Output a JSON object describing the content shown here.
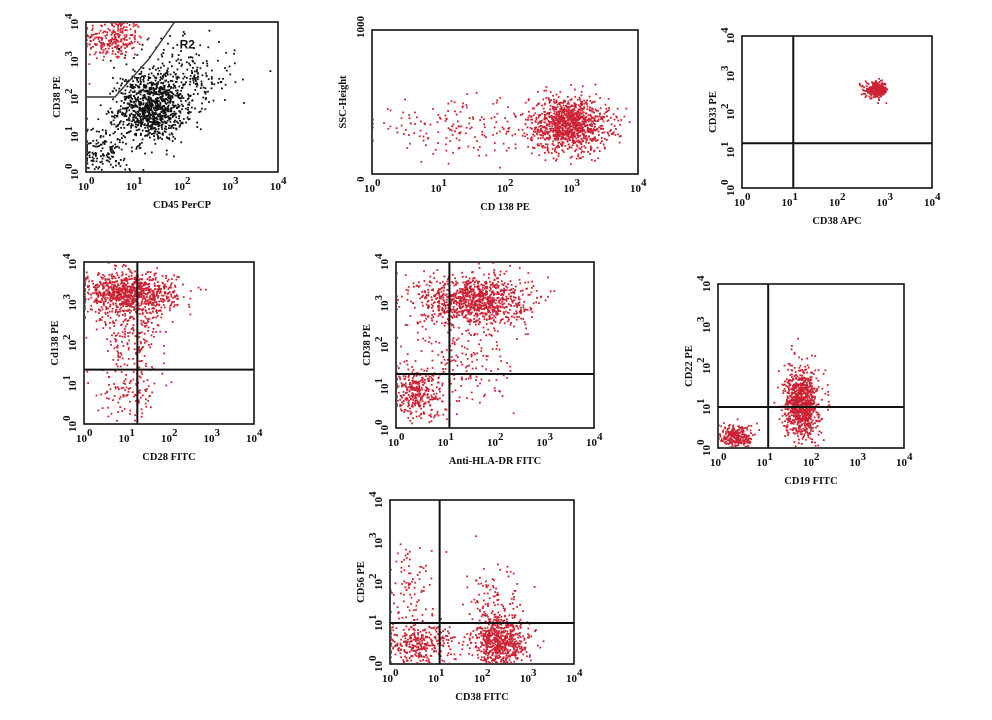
{
  "colors": {
    "event": "#cc2233",
    "event_alt": "#111111",
    "frame": "#111111"
  },
  "chart_data": [
    {
      "id": "p1",
      "type": "scatter",
      "xscale": "log",
      "yscale": "log",
      "xlim": [
        1,
        10000
      ],
      "ylim": [
        1,
        10000
      ],
      "xlabel": "CD45 PerCP",
      "ylabel": "CD38 PE",
      "xticks": [
        "10",
        "10",
        "10",
        "10",
        "10"
      ],
      "xexps": [
        "0",
        "1",
        "2",
        "3",
        "4"
      ],
      "yticks": [
        "10",
        "10",
        "10",
        "10",
        "10"
      ],
      "yexps": [
        "0",
        "1",
        "2",
        "3",
        "4"
      ],
      "gate_label": "R2",
      "gate_polygon": [
        [
          1,
          100
        ],
        [
          4,
          100
        ],
        [
          20,
          1000
        ],
        [
          70,
          10000
        ]
      ],
      "clusters": [
        {
          "color": "event",
          "n": 240,
          "cx": 0.55,
          "cy": 3.55,
          "sx": 0.32,
          "sy": 0.28
        },
        {
          "color": "event_alt",
          "n": 900,
          "cx": 1.35,
          "cy": 1.7,
          "sx": 0.34,
          "sy": 0.42
        },
        {
          "color": "event_alt",
          "n": 300,
          "cx": 1.9,
          "cy": 2.5,
          "sx": 0.6,
          "sy": 0.5
        },
        {
          "color": "event_alt",
          "n": 180,
          "cx": 0.35,
          "cy": 0.55,
          "sx": 0.3,
          "sy": 0.4
        }
      ]
    },
    {
      "id": "p2",
      "type": "scatter",
      "xscale": "log",
      "yscale": "linear",
      "xlim": [
        1,
        10000
      ],
      "ylim": [
        0,
        1000
      ],
      "xlabel": "CD 138 PE",
      "ylabel": "SSC-Height",
      "xticks": [
        "10",
        "10",
        "10",
        "10",
        "10"
      ],
      "xexps": [
        "0",
        "1",
        "2",
        "3",
        "4"
      ],
      "yticks": [
        "0",
        "1000"
      ],
      "yexps": [
        "",
        ""
      ],
      "clusters": [
        {
          "color": "event",
          "n": 1100,
          "cx": 2.95,
          "cy": 350,
          "sx": 0.3,
          "sy": 95
        },
        {
          "color": "event",
          "n": 160,
          "cx": 1.3,
          "cy": 330,
          "sx": 0.7,
          "sy": 90
        }
      ]
    },
    {
      "id": "p3",
      "type": "scatter",
      "xscale": "log",
      "yscale": "log",
      "xlim": [
        1,
        10000
      ],
      "ylim": [
        1,
        10000
      ],
      "xlabel": "CD38 APC",
      "ylabel": "CD33 PE",
      "xticks": [
        "10",
        "10",
        "10",
        "10",
        "10"
      ],
      "xexps": [
        "0",
        "1",
        "2",
        "3",
        "4"
      ],
      "yticks": [
        "10",
        "10",
        "10",
        "10",
        "10"
      ],
      "yexps": [
        "0",
        "1",
        "2",
        "3",
        "4"
      ],
      "quadrant": [
        12,
        15
      ],
      "clusters": [
        {
          "color": "event",
          "n": 300,
          "cx": 2.82,
          "cy": 2.6,
          "sx": 0.12,
          "sy": 0.1
        }
      ]
    },
    {
      "id": "p4",
      "type": "scatter",
      "xscale": "log",
      "yscale": "log",
      "xlim": [
        1,
        10000
      ],
      "ylim": [
        1,
        10000
      ],
      "xlabel": "CD28 FITC",
      "ylabel": "Cd138 PE",
      "xticks": [
        "10",
        "10",
        "10",
        "10",
        "10"
      ],
      "xexps": [
        "0",
        "1",
        "2",
        "3",
        "4"
      ],
      "yticks": [
        "10",
        "10",
        "10",
        "10",
        "10"
      ],
      "yexps": [
        "0",
        "1",
        "2",
        "3",
        "4"
      ],
      "quadrant": [
        18,
        22
      ],
      "clusters": [
        {
          "color": "event",
          "n": 900,
          "cx": 1.05,
          "cy": 3.25,
          "sx": 0.55,
          "sy": 0.25
        },
        {
          "color": "event",
          "n": 200,
          "cx": 1.1,
          "cy": 2.3,
          "sx": 0.4,
          "sy": 0.5
        },
        {
          "color": "event",
          "n": 120,
          "cx": 1.1,
          "cy": 0.9,
          "sx": 0.35,
          "sy": 0.4
        }
      ]
    },
    {
      "id": "p5",
      "type": "scatter",
      "xscale": "log",
      "yscale": "log",
      "xlim": [
        1,
        10000
      ],
      "ylim": [
        1,
        10000
      ],
      "xlabel": "Anti-HLA-DR FITC",
      "ylabel": "CD38 PE",
      "xticks": [
        "10",
        "10",
        "10",
        "10",
        "10"
      ],
      "xexps": [
        "0",
        "1",
        "2",
        "3",
        "4"
      ],
      "yticks": [
        "10",
        "10",
        "10",
        "10",
        "10"
      ],
      "yexps": [
        "0",
        "1",
        "2",
        "3",
        "4"
      ],
      "quadrant": [
        12,
        20
      ],
      "clusters": [
        {
          "color": "event",
          "n": 1000,
          "cx": 1.55,
          "cy": 3.1,
          "sx": 0.55,
          "sy": 0.3
        },
        {
          "color": "event",
          "n": 300,
          "cx": 0.4,
          "cy": 0.85,
          "sx": 0.25,
          "sy": 0.3
        },
        {
          "color": "event",
          "n": 200,
          "cx": 1.2,
          "cy": 1.5,
          "sx": 0.6,
          "sy": 0.6
        }
      ]
    },
    {
      "id": "p6",
      "type": "scatter",
      "xscale": "log",
      "yscale": "log",
      "xlim": [
        1,
        10000
      ],
      "ylim": [
        1,
        10000
      ],
      "xlabel": "CD19 FITC",
      "ylabel": "CD22 PE",
      "xticks": [
        "10",
        "10",
        "10",
        "10",
        "10"
      ],
      "xexps": [
        "0",
        "1",
        "2",
        "3",
        "4"
      ],
      "yticks": [
        "10",
        "10",
        "10",
        "10",
        "10"
      ],
      "yexps": [
        "0",
        "1",
        "2",
        "3",
        "4"
      ],
      "quadrant": [
        12,
        10
      ],
      "clusters": [
        {
          "color": "event",
          "n": 250,
          "cx": 0.4,
          "cy": 0.3,
          "sx": 0.18,
          "sy": 0.15
        },
        {
          "color": "event",
          "n": 900,
          "cx": 1.78,
          "cy": 1.1,
          "sx": 0.18,
          "sy": 0.42
        }
      ]
    },
    {
      "id": "p7",
      "type": "scatter",
      "xscale": "log",
      "yscale": "log",
      "xlim": [
        1,
        10000
      ],
      "ylim": [
        1,
        10000
      ],
      "xlabel": "CD38 FITC",
      "ylabel": "CD56 PE",
      "xticks": [
        "10",
        "10",
        "10",
        "10",
        "10"
      ],
      "xexps": [
        "0",
        "1",
        "2",
        "3",
        "4"
      ],
      "yticks": [
        "10",
        "10",
        "10",
        "10",
        "10"
      ],
      "yexps": [
        "0",
        "1",
        "2",
        "3",
        "4"
      ],
      "quadrant": [
        12,
        10
      ],
      "clusters": [
        {
          "color": "event",
          "n": 700,
          "cx": 2.4,
          "cy": 0.55,
          "sx": 0.3,
          "sy": 0.35
        },
        {
          "color": "event",
          "n": 350,
          "cx": 0.6,
          "cy": 0.5,
          "sx": 0.4,
          "sy": 0.3
        },
        {
          "color": "event",
          "n": 80,
          "cx": 0.4,
          "cy": 1.9,
          "sx": 0.25,
          "sy": 0.5
        },
        {
          "color": "event",
          "n": 80,
          "cx": 2.2,
          "cy": 1.6,
          "sx": 0.3,
          "sy": 0.4
        }
      ]
    }
  ]
}
